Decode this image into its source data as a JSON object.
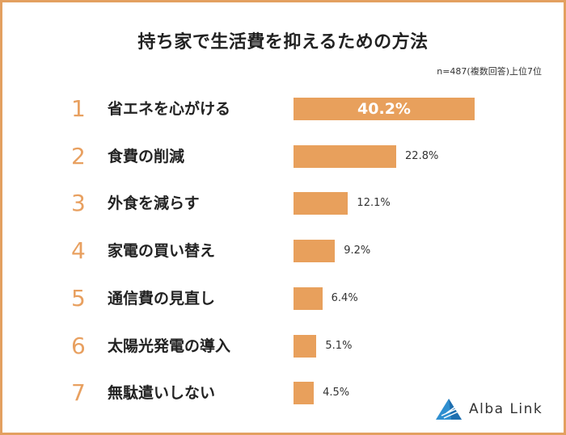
{
  "chart_data": {
    "type": "bar",
    "orientation": "horizontal",
    "title": "持ち家で生活費を抑えるための方法",
    "subtitle": "n=487(複数回答)上位7位",
    "ranks": [
      "1",
      "2",
      "3",
      "4",
      "5",
      "6",
      "7"
    ],
    "categories": [
      "省エネを心がける",
      "食費の削減",
      "外食を減らす",
      "家電の買い替え",
      "通信費の見直し",
      "太陽光発電の導入",
      "無駄遣いしない"
    ],
    "values": [
      40.2,
      22.8,
      12.1,
      9.2,
      6.4,
      5.1,
      4.5
    ],
    "labels": [
      "40.2%",
      "22.8%",
      "12.1%",
      "9.2%",
      "6.4%",
      "5.1%",
      "4.5%"
    ],
    "unit": "%",
    "grid": false,
    "colors": {
      "bar": "#e8a05c",
      "rank": "#e8a060",
      "frame": "#e3a060",
      "logo": "#2f8fd0"
    }
  },
  "logo": {
    "text": "Alba Link"
  }
}
